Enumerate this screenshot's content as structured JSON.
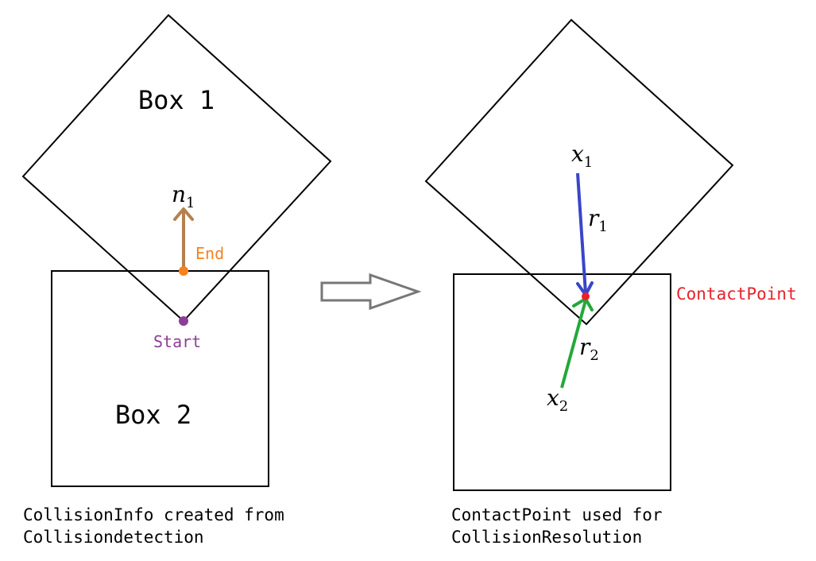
{
  "left_panel": {
    "box1_label": "Box 1",
    "box2_label": "Box 2",
    "normal": {
      "symbol": "n",
      "subscript": "1"
    },
    "end_label": "End",
    "start_label": "Start",
    "caption_line1": "CollisionInfo created from",
    "caption_line2": "Collisiondetection"
  },
  "right_panel": {
    "x1": {
      "symbol": "x",
      "subscript": "1"
    },
    "r1": {
      "symbol": "r",
      "subscript": "1"
    },
    "r2": {
      "symbol": "r",
      "subscript": "2"
    },
    "x2": {
      "symbol": "x",
      "subscript": "2"
    },
    "contact_label": "ContactPoint",
    "caption_line1": "ContactPoint used for",
    "caption_line2": "CollisionResolution"
  },
  "colors": {
    "outline": "#000000",
    "normal_arrow": "#b5804f",
    "end_point": "#f5821f",
    "start_point": "#8e3d96",
    "r1_arrow": "#3a45c8",
    "r2_arrow": "#22a83a",
    "contact": "#e8212a",
    "transition_arrow": "#777777"
  }
}
